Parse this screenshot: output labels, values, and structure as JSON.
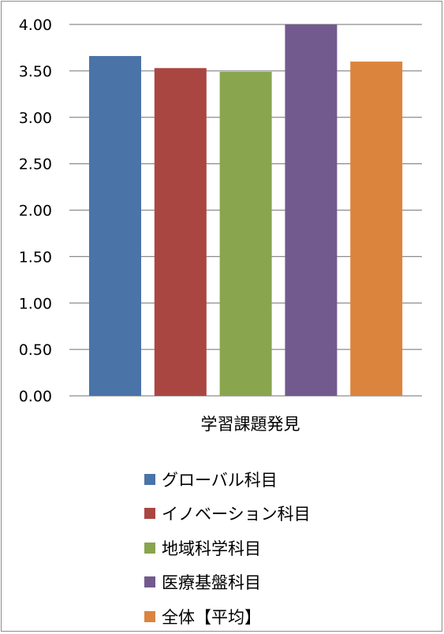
{
  "chart_data": {
    "type": "bar",
    "categories": [
      "学習課題発見"
    ],
    "series": [
      {
        "name": "グローバル科目",
        "values": [
          3.66
        ],
        "color": "#4a73a8"
      },
      {
        "name": "イノベーション科目",
        "values": [
          3.53
        ],
        "color": "#aa4642"
      },
      {
        "name": "地域科学科目",
        "values": [
          3.49
        ],
        "color": "#89a54e"
      },
      {
        "name": "医療基盤科目",
        "values": [
          4.0
        ],
        "color": "#725a8e"
      },
      {
        "name": "全体【平均】",
        "values": [
          3.6
        ],
        "color": "#db843d"
      }
    ],
    "yticks": [
      "0.00",
      "0.50",
      "1.00",
      "1.50",
      "2.00",
      "2.50",
      "3.00",
      "3.50",
      "4.00"
    ],
    "ylim": [
      0,
      4
    ],
    "grid": true,
    "legend_position": "bottom"
  }
}
